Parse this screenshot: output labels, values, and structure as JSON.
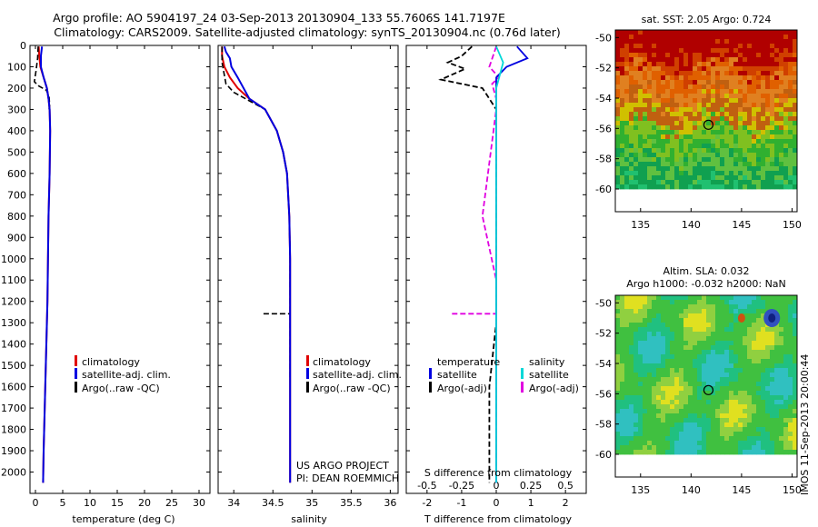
{
  "header": {
    "title": "Argo profile: AO 5904197_24 03-Sep-2013 20130904_133 55.7606S 141.7197E",
    "subtitle": "Climatology: CARS2009. Satellite-adjusted climatology: synTS_20130904.nc (0.76d later)"
  },
  "colors": {
    "climatology": "#e00000",
    "satellite": "#0000e0",
    "argo": "#000000",
    "sal_satellite": "#00d8d8",
    "sal_argo": "#e000e0"
  },
  "chart_data": [
    {
      "type": "line",
      "name": "temperature",
      "xlabel": "temperature (deg C)",
      "ylabel": "",
      "xlim": [
        -1,
        32
      ],
      "ylim": [
        2100,
        0
      ],
      "xticks": [
        "0",
        "5",
        "10",
        "15",
        "20",
        "25",
        "30"
      ],
      "yticks": [
        "0",
        "100",
        "200",
        "300",
        "400",
        "500",
        "600",
        "700",
        "800",
        "900",
        "1000",
        "1100",
        "1200",
        "1300",
        "1400",
        "1500",
        "1600",
        "1700",
        "1800",
        "1900",
        "2000"
      ],
      "legend": [
        "climatology",
        "satellite-adj. clim.",
        "Argo(..raw -QC)"
      ],
      "series": [
        {
          "name": "climatology",
          "x": [
            0.6,
            0.7,
            0.9,
            1.5,
            2.1,
            2.4,
            2.6,
            2.7,
            2.6,
            2.4,
            2.3,
            2.2,
            2.1,
            2.0,
            1.9,
            1.8,
            1.7,
            1.6,
            1.5,
            1.4
          ],
          "y": [
            5,
            50,
            100,
            150,
            200,
            250,
            300,
            400,
            600,
            800,
            1000,
            1200,
            1300,
            1400,
            1500,
            1600,
            1700,
            1800,
            1900,
            2050
          ]
        },
        {
          "name": "satellite-adj. clim.",
          "x": [
            1.2,
            1.0,
            1.0,
            1.5,
            2.1,
            2.4,
            2.6,
            2.7,
            2.6,
            2.4,
            2.3,
            2.2,
            2.1,
            2.0,
            1.9,
            1.8,
            1.7,
            1.6,
            1.5,
            1.4
          ],
          "y": [
            5,
            50,
            100,
            150,
            200,
            250,
            300,
            400,
            600,
            800,
            1000,
            1200,
            1300,
            1400,
            1500,
            1600,
            1700,
            1800,
            1900,
            2050
          ]
        },
        {
          "name": "Argo(..raw -QC)",
          "x": [
            0.5,
            0.4,
            0.1,
            -0.2,
            0.6,
            2.0,
            2.5,
            2.6,
            2.5
          ],
          "y": [
            5,
            60,
            120,
            170,
            190,
            210,
            240,
            280,
            300
          ]
        }
      ]
    },
    {
      "type": "line",
      "name": "salinity",
      "xlabel": "salinity",
      "ylabel": "",
      "xlim": [
        33.8,
        36.1
      ],
      "ylim": [
        2100,
        0
      ],
      "xticks": [
        "34",
        "34.5",
        "35",
        "35.5",
        "36"
      ],
      "legend": [
        "climatology",
        "satellite-adj. clim.",
        "Argo(..raw -QC)"
      ],
      "annotations": [
        "US ARGO PROJECT",
        "PI: DEAN ROEMMICH"
      ],
      "series": [
        {
          "name": "climatology",
          "x": [
            33.85,
            33.85,
            33.88,
            33.95,
            34.05,
            34.2,
            34.4,
            34.55,
            34.63,
            34.68,
            34.71,
            34.72,
            34.72,
            34.72,
            34.72
          ],
          "y": [
            5,
            50,
            100,
            150,
            200,
            250,
            300,
            400,
            500,
            600,
            800,
            1000,
            1300,
            1700,
            2050
          ]
        },
        {
          "name": "satellite-adj. clim.",
          "x": [
            33.88,
            33.9,
            33.95,
            33.97,
            34.05,
            34.2,
            34.4,
            34.55,
            34.63,
            34.68,
            34.71,
            34.72,
            34.72,
            34.72,
            34.72
          ],
          "y": [
            5,
            30,
            60,
            100,
            150,
            250,
            300,
            400,
            500,
            600,
            800,
            1000,
            1300,
            1700,
            2050
          ]
        },
        {
          "name": "Argo(..raw -QC)",
          "x": [
            33.85,
            33.85,
            33.88,
            33.9,
            34.0,
            34.2,
            34.4,
            34.55,
            34.63,
            34.68,
            34.71,
            34.72,
            34.72,
            34.72
          ],
          "y": [
            5,
            80,
            140,
            180,
            220,
            260,
            300,
            400,
            500,
            600,
            800,
            1000,
            1300,
            1560
          ]
        },
        {
          "name": "Argo spike",
          "x": [
            34.38,
            34.72
          ],
          "y": [
            1258,
            1258
          ]
        }
      ]
    },
    {
      "type": "line",
      "name": "difference",
      "xlabel": "T difference from climatology",
      "top_label": "S difference from climatology",
      "xlim_T": [
        -2.6,
        2.6
      ],
      "xticks_T": [
        "-2",
        "-1",
        "0",
        "1",
        "2"
      ],
      "xlim_S": [
        -0.65,
        0.65
      ],
      "xticks_S": [
        "-0.5",
        "-0.25",
        "0",
        "0.25",
        "0.5"
      ],
      "legend_temperature": [
        "temperature",
        "satellite",
        "Argo(-adj)"
      ],
      "legend_salinity": [
        "salinity",
        "satellite",
        "Argo(-adj)"
      ],
      "series": [
        {
          "name": "temperature satellite",
          "x": [
            0.6,
            0.9,
            0.3,
            0.0,
            0.0,
            0.0
          ],
          "y": [
            5,
            60,
            100,
            150,
            300,
            2050
          ]
        },
        {
          "name": "temperature Argo(-adj)",
          "x": [
            -0.7,
            -1.0,
            -1.4,
            -0.9,
            -1.6,
            -0.4,
            0.0,
            0.0,
            -0.2,
            -0.2
          ],
          "y": [
            5,
            50,
            80,
            110,
            160,
            200,
            300,
            1300,
            1600,
            2050
          ]
        },
        {
          "name": "salinity satellite",
          "x": [
            0.0,
            0.05,
            0.0,
            0.0,
            0.0
          ],
          "y": [
            5,
            80,
            200,
            300,
            2050
          ]
        },
        {
          "name": "salinity Argo(-adj)",
          "x": [
            0.0,
            -0.05,
            0.02,
            -0.03,
            0.0,
            0.0,
            -0.1,
            0.0,
            0.0
          ],
          "y": [
            5,
            100,
            150,
            180,
            250,
            300,
            800,
            1100,
            2050
          ]
        },
        {
          "name": "salinity Argo spike",
          "x": [
            -0.32,
            0.0
          ],
          "y": [
            1258,
            1258
          ]
        }
      ]
    },
    {
      "type": "heatmap",
      "name": "sst-map",
      "title": "sat. SST: 2.05 Argo: 0.724",
      "xlim": [
        132.5,
        150.5
      ],
      "ylim": [
        -61.5,
        -49.5
      ],
      "xticks": [
        "135",
        "140",
        "145",
        "150"
      ],
      "yticks": [
        "-50",
        "-52",
        "-54",
        "-56",
        "-58",
        "-60"
      ],
      "marker": {
        "lon": 141.72,
        "lat": -55.76
      }
    },
    {
      "type": "heatmap",
      "name": "sla-map",
      "title": "Altim. SLA: 0.032",
      "subtitle": "Argo h1000: -0.032 h2000: NaN",
      "xlim": [
        132.5,
        150.5
      ],
      "ylim": [
        -61.5,
        -49.5
      ],
      "xticks": [
        "135",
        "140",
        "145",
        "150"
      ],
      "yticks": [
        "-50",
        "-52",
        "-54",
        "-56",
        "-58",
        "-60"
      ],
      "marker": {
        "lon": 141.72,
        "lat": -55.76
      }
    }
  ],
  "footer": {
    "stamp": "IMOS 11-Sep-2013 20:00:44"
  }
}
